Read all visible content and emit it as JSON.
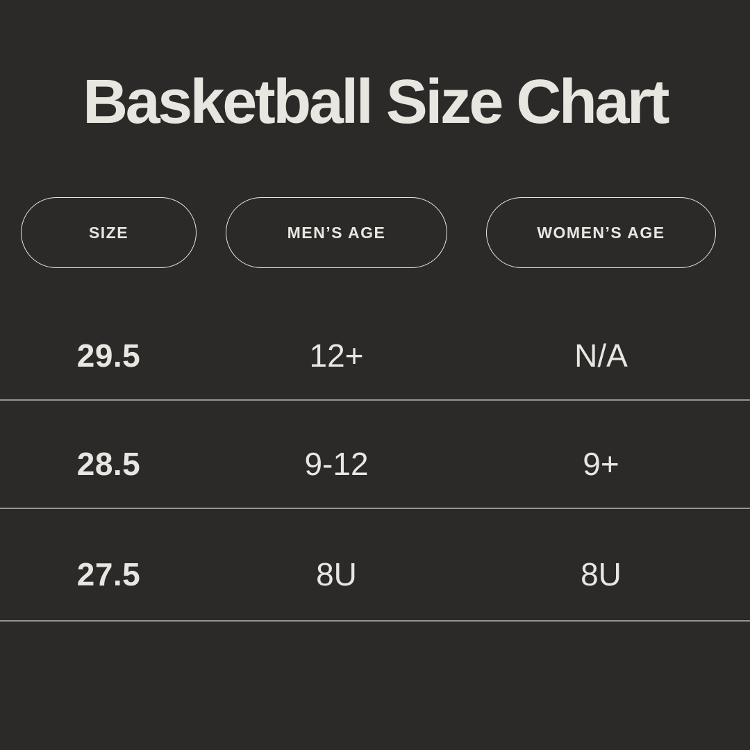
{
  "title": "Basketball Size Chart",
  "columns": [
    {
      "label": "SIZE"
    },
    {
      "label": "MEN’S AGE"
    },
    {
      "label": "WOMEN’S AGE"
    }
  ],
  "rows": [
    {
      "size": "29.5",
      "mens_age": "12+",
      "womens_age": "N/A"
    },
    {
      "size": "28.5",
      "mens_age": "9-12",
      "womens_age": "9+"
    },
    {
      "size": "27.5",
      "mens_age": "8U",
      "womens_age": "8U"
    }
  ],
  "colors": {
    "background": "#2b2a29",
    "text": "#e8e6e0",
    "divider": "#97958f",
    "pill_border": "#e8e6e0"
  },
  "chart_data": {
    "type": "table",
    "title": "Basketball Size Chart",
    "columns": [
      "SIZE",
      "MEN’S AGE",
      "WOMEN’S AGE"
    ],
    "rows": [
      [
        "29.5",
        "12+",
        "N/A"
      ],
      [
        "28.5",
        "9-12",
        "9+"
      ],
      [
        "27.5",
        "8U",
        "8U"
      ]
    ]
  }
}
